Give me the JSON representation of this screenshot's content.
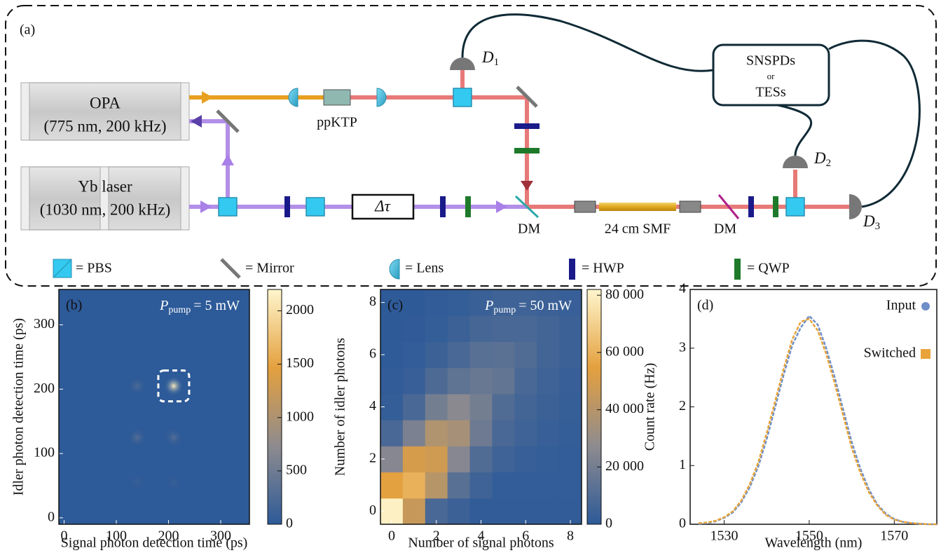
{
  "diagram": {
    "panel_label": "(a)",
    "sources": [
      {
        "name": "OPA",
        "spec": "(775 nm, 200 kHz)"
      },
      {
        "name": "Yb laser",
        "spec": "(1030 nm, 200 kHz)"
      }
    ],
    "crystal": "ppKTP",
    "delay": "Δτ",
    "dichroic_labels": [
      "DM",
      "DM"
    ],
    "fiber": "24 cm SMF",
    "detector_box": [
      "SNSPDs",
      "or",
      "TESs"
    ],
    "detectors": [
      {
        "symbol": "D",
        "index": "1"
      },
      {
        "symbol": "D",
        "index": "2"
      },
      {
        "symbol": "D",
        "index": "3"
      }
    ],
    "legend": [
      "= PBS",
      "= Mirror",
      "= Lens",
      "= HWP",
      "= QWP"
    ]
  },
  "chart_data": [
    {
      "type": "heatmap-spots",
      "panel_label": "(b)",
      "annotation": {
        "symbol": "P",
        "subscript": "pump",
        "text": "= 5 mW"
      },
      "xlabel": "Signal photon detection time (ps)",
      "ylabel": "Idler photon detection time (ps)",
      "xlim": [
        -10,
        355
      ],
      "ylim": [
        -10,
        355
      ],
      "xticks": [
        0,
        100,
        200,
        300
      ],
      "yticks": [
        0,
        100,
        200,
        300
      ],
      "background": 0,
      "spots": [
        {
          "x": 210,
          "y": 205,
          "value": 2100
        },
        {
          "x": 140,
          "y": 205,
          "value": 250
        },
        {
          "x": 140,
          "y": 125,
          "value": 300
        },
        {
          "x": 210,
          "y": 125,
          "value": 300
        },
        {
          "x": 140,
          "y": 55,
          "value": 80
        },
        {
          "x": 210,
          "y": 55,
          "value": 80
        }
      ],
      "zlim": [
        0,
        2200
      ],
      "zticks": [
        0,
        500,
        1000,
        1500,
        2000
      ],
      "colormap": [
        "#2d5a98",
        "#8e8b8f",
        "#e4a03e",
        "#fff6cd"
      ]
    },
    {
      "type": "heatmap",
      "panel_label": "(c)",
      "annotation": {
        "symbol": "P",
        "subscript": "pump",
        "text": "= 50 mW"
      },
      "xlabel": "Number of signal photons",
      "ylabel": "Number of idler photons",
      "x": [
        0,
        1,
        2,
        3,
        4,
        5,
        6,
        7,
        8
      ],
      "y": [
        0,
        1,
        2,
        3,
        4,
        5,
        6,
        7,
        8
      ],
      "xlim": [
        -0.5,
        8.5
      ],
      "ylim": [
        -0.5,
        8.5
      ],
      "xticks": [
        0,
        2,
        4,
        6,
        8
      ],
      "yticks": [
        0,
        2,
        4,
        6,
        8
      ],
      "z": [
        [
          80000,
          45000,
          8000,
          4000,
          1000,
          1000,
          1000,
          1000,
          1000
        ],
        [
          55000,
          60000,
          40000,
          12000,
          5000,
          1500,
          1500,
          1500,
          1500
        ],
        [
          25000,
          50000,
          48000,
          25000,
          10000,
          5000,
          3000,
          2000,
          1500
        ],
        [
          8000,
          22000,
          38000,
          35000,
          18000,
          8000,
          5000,
          3000,
          2000
        ],
        [
          2000,
          8000,
          20000,
          26000,
          20000,
          10000,
          6000,
          4000,
          2500
        ],
        [
          1000,
          3000,
          9000,
          14000,
          17000,
          15000,
          8000,
          5000,
          3000
        ],
        [
          500,
          1500,
          4000,
          8000,
          12000,
          13000,
          10000,
          6000,
          4000
        ],
        [
          300,
          800,
          2000,
          4000,
          7000,
          8000,
          8000,
          6000,
          4000
        ],
        [
          200,
          400,
          1000,
          2000,
          3500,
          5000,
          5000,
          4000,
          3000
        ]
      ],
      "zlim": [
        0,
        82000
      ],
      "zticks": [
        0,
        {
          "value": 20000,
          "label": "20 000"
        },
        {
          "value": 40000,
          "label": "40 000"
        },
        {
          "value": 60000,
          "label": "60 000"
        },
        {
          "value": 80000,
          "label": "80 000"
        }
      ],
      "colormap": [
        "#2d5a98",
        "#8e8b8f",
        "#e4a03e",
        "#fff6cd"
      ]
    },
    {
      "type": "line",
      "panel_label": "(d)",
      "xlabel": "Wavelength (nm)",
      "ylabel": "Count rate (Hz)",
      "xlim": [
        1522,
        1580
      ],
      "ylim": [
        0,
        4
      ],
      "xticks": [
        1530,
        1550,
        1570
      ],
      "yticks": [
        0,
        1,
        2,
        3,
        4
      ],
      "legend": "upper right",
      "x": [
        1524,
        1526,
        1528,
        1530,
        1532,
        1534,
        1536,
        1538,
        1540,
        1542,
        1544,
        1546,
        1548,
        1550,
        1552,
        1554,
        1556,
        1558,
        1560,
        1562,
        1564,
        1566,
        1568,
        1570,
        1572,
        1574,
        1576,
        1578,
        1580
      ],
      "series": [
        {
          "name": "Input",
          "color": "#6f8fc8",
          "marker": "circle",
          "values": [
            0.01,
            0.02,
            0.05,
            0.11,
            0.2,
            0.37,
            0.63,
            0.98,
            1.45,
            2.0,
            2.55,
            3.05,
            3.35,
            3.55,
            3.4,
            3.0,
            2.5,
            1.95,
            1.4,
            0.95,
            0.6,
            0.34,
            0.18,
            0.09,
            0.04,
            0.02,
            0.01,
            0,
            0
          ]
        },
        {
          "name": "Switched",
          "color": "#e8a43a",
          "marker": "square",
          "values": [
            0.02,
            0.03,
            0.06,
            0.12,
            0.22,
            0.4,
            0.68,
            1.05,
            1.55,
            2.1,
            2.65,
            3.15,
            3.45,
            3.5,
            3.3,
            2.9,
            2.4,
            1.85,
            1.3,
            0.88,
            0.55,
            0.32,
            0.16,
            0.08,
            0.04,
            0.02,
            0.01,
            0,
            0
          ]
        }
      ]
    }
  ]
}
